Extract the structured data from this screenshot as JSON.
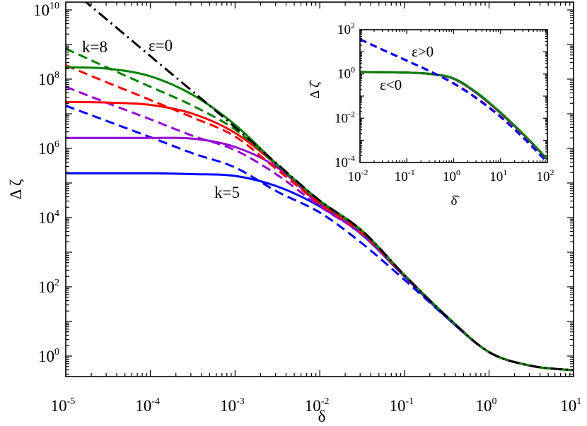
{
  "chart_data": [
    {
      "type": "line",
      "xlabel": "δ",
      "ylabel": "Δ ζ",
      "xscale": "log",
      "yscale": "log",
      "xlim": [
        1e-05,
        10
      ],
      "ylim": [
        0.26,
        17000000000.0
      ],
      "grid": false,
      "x_ticks": [
        {
          "base": "10",
          "exp": "-5"
        },
        {
          "base": "10",
          "exp": "-4"
        },
        {
          "base": "10",
          "exp": "-3"
        },
        {
          "base": "10",
          "exp": "-2"
        },
        {
          "base": "10",
          "exp": "-1"
        },
        {
          "base": "10",
          "exp": "0"
        },
        {
          "base": "10",
          "exp": "1"
        }
      ],
      "y_ticks": [
        {
          "base": "10",
          "exp": "0"
        },
        {
          "base": "10",
          "exp": "2"
        },
        {
          "base": "10",
          "exp": "4"
        },
        {
          "base": "10",
          "exp": "6"
        },
        {
          "base": "10",
          "exp": "8"
        },
        {
          "base": "10",
          "exp": "10"
        }
      ],
      "x": [
        1e-05,
        3.16e-05,
        0.0001,
        0.000316,
        0.001,
        0.00316,
        0.01,
        0.0316,
        0.1,
        0.316,
        1,
        3.16,
        10
      ],
      "series": [
        {
          "color": "#0000ff",
          "style": "solid",
          "values": [
            190000.0,
            190000.0,
            190000.0,
            180000.0,
            160000.0,
            79000.0,
            21000.0,
            3200.0,
            200,
            13,
            1.3,
            0.52,
            0.39
          ]
        },
        {
          "color": "#0000ff",
          "style": "dashed",
          "values": [
            17000000.0,
            6000000.0,
            2100000.0,
            720000.0,
            280000.0,
            56000.0,
            14000.0,
            1800.0,
            160,
            13,
            1.3,
            0.52,
            0.39
          ]
        },
        {
          "color": "#9400d3",
          "style": "solid",
          "values": [
            2000000.0,
            2000000.0,
            2000000.0,
            1900000.0,
            1100000.0,
            280000.0,
            24000.0,
            3500.0,
            210,
            14,
            1.3,
            0.52,
            0.39
          ]
        },
        {
          "color": "#9400d3",
          "style": "dashed",
          "values": [
            60000000.0,
            20000000.0,
            6900000.0,
            2300000.0,
            890000.0,
            170000.0,
            21000.0,
            3300.0,
            210,
            14,
            1.3,
            0.52,
            0.39
          ]
        },
        {
          "color": "#ff0000",
          "style": "solid",
          "values": [
            22000000.0,
            21000000.0,
            18000000.0,
            10000000.0,
            2800000.0,
            320000.0,
            28000.0,
            4000.0,
            220,
            14,
            1.3,
            0.52,
            0.39
          ]
        },
        {
          "color": "#ff0000",
          "style": "dashed",
          "values": [
            250000000.0,
            78000000.0,
            25000000.0,
            7800000.0,
            2200000.0,
            240000.0,
            25000.0,
            3500.0,
            210,
            14,
            1.3,
            0.52,
            0.39
          ]
        },
        {
          "color": "#008000",
          "style": "solid",
          "values": [
            220000000.0,
            200000000.0,
            120000000.0,
            35000000.0,
            4800000.0,
            340000.0,
            31000.0,
            4200.0,
            220,
            14,
            1.3,
            0.52,
            0.39
          ]
        },
        {
          "color": "#008000",
          "style": "dashed",
          "values": [
            760000000.0,
            210000000.0,
            60000000.0,
            17000000.0,
            3500000.0,
            320000.0,
            30000.0,
            4000.0,
            220,
            14,
            1.3,
            0.52,
            0.39
          ]
        },
        {
          "color": "#000000",
          "style": "dashdot",
          "values": [
            52000000000.0,
            4900000000.0,
            460000000.0,
            44000000.0,
            4100000.0,
            350000.0,
            31000.0,
            4200.0,
            220,
            14,
            1.3,
            0.52,
            0.39
          ]
        }
      ],
      "annotations": [
        "k=8",
        "ε=0",
        "k=5"
      ]
    },
    {
      "type": "line",
      "xlabel": "δ̂",
      "ylabel": "Δ ζ̂",
      "xscale": "log",
      "yscale": "log",
      "xlim": [
        0.01,
        100
      ],
      "ylim": [
        0.0001,
        100
      ],
      "grid": false,
      "x_ticks": [
        {
          "base": "10",
          "exp": "-2"
        },
        {
          "base": "10",
          "exp": "-1"
        },
        {
          "base": "10",
          "exp": "0"
        },
        {
          "base": "10",
          "exp": "1"
        },
        {
          "base": "10",
          "exp": "2"
        }
      ],
      "y_ticks": [
        {
          "base": "10",
          "exp": "-4"
        },
        {
          "base": "10",
          "exp": "-2"
        },
        {
          "base": "10",
          "exp": "0"
        },
        {
          "base": "10",
          "exp": "2"
        }
      ],
      "x": [
        0.01,
        0.0316,
        0.1,
        0.316,
        1,
        3.16,
        10,
        31.6,
        100
      ],
      "series": [
        {
          "color": "#9400d3",
          "style": "solid",
          "values": [
            1.23,
            1.2,
            1.15,
            1.0,
            0.6,
            0.13,
            0.017,
            0.0017,
            0.000135
          ]
        },
        {
          "color": "#0000ff",
          "style": "solid",
          "values": [
            1.23,
            1.2,
            1.15,
            1.0,
            0.61,
            0.135,
            0.0175,
            0.00175,
            0.00014
          ]
        },
        {
          "color": "#ff0000",
          "style": "solid",
          "values": [
            1.23,
            1.2,
            1.15,
            1.0,
            0.62,
            0.138,
            0.0178,
            0.00178,
            0.00014
          ]
        },
        {
          "color": "#008000",
          "style": "solid",
          "values": [
            1.23,
            1.2,
            1.15,
            1.0,
            0.63,
            0.14,
            0.018,
            0.0018,
            0.00014
          ]
        },
        {
          "color": "#008000",
          "style": "dashed",
          "values": [
            37,
            12,
            4.0,
            1.3,
            0.38,
            0.079,
            0.012,
            0.0013,
            0.0001
          ]
        },
        {
          "color": "#ff0000",
          "style": "dashed",
          "values": [
            37,
            12,
            4.0,
            1.3,
            0.38,
            0.079,
            0.012,
            0.0013,
            0.0001
          ]
        },
        {
          "color": "#9400d3",
          "style": "dashed",
          "values": [
            37,
            12,
            4.0,
            1.3,
            0.37,
            0.076,
            0.0115,
            0.00125,
            0.0001
          ]
        },
        {
          "color": "#0000ff",
          "style": "dashed",
          "values": [
            37,
            12,
            4.0,
            1.3,
            0.37,
            0.075,
            0.0113,
            0.0012,
            0.0001
          ]
        }
      ],
      "annotations": [
        "ε>0",
        "ε<0"
      ]
    }
  ]
}
